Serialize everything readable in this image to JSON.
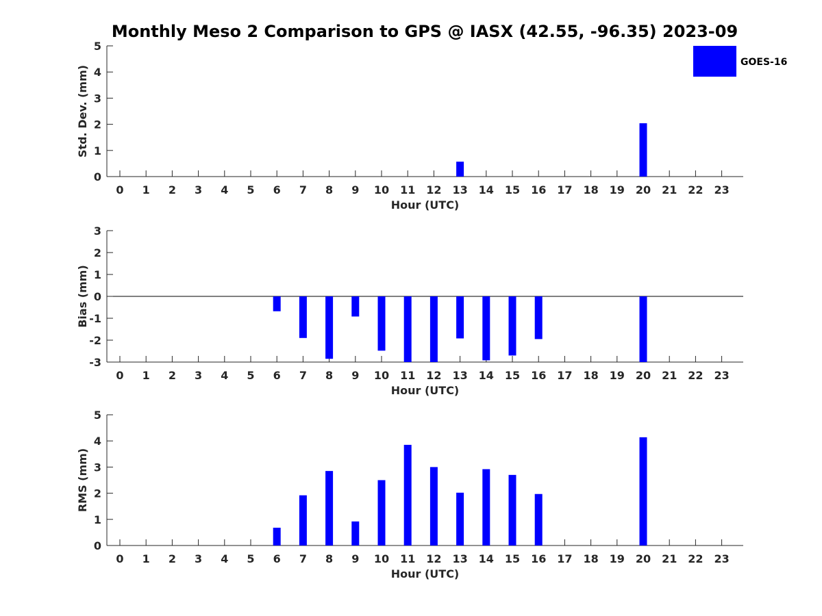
{
  "title": "Monthly Meso 2 Comparison to GPS @ IASX (42.55, -96.35) 2023-09",
  "legend": {
    "label": "GOES-16",
    "color": "#0000ff",
    "placement": "top-right"
  },
  "chart_data": [
    {
      "type": "bar",
      "xlabel": "Hour (UTC)",
      "ylabel": "Std. Dev. (mm)",
      "categories": [
        "0",
        "1",
        "2",
        "3",
        "4",
        "5",
        "6",
        "7",
        "8",
        "9",
        "10",
        "11",
        "12",
        "13",
        "14",
        "15",
        "16",
        "17",
        "18",
        "19",
        "20",
        "21",
        "22",
        "23"
      ],
      "series": [
        {
          "name": "GOES-16",
          "color": "#0000ff",
          "values": [
            null,
            null,
            null,
            null,
            null,
            null,
            null,
            null,
            null,
            null,
            null,
            null,
            null,
            0.57,
            null,
            null,
            null,
            null,
            null,
            null,
            2.04,
            null,
            null,
            null
          ]
        }
      ],
      "ylim": [
        0,
        5
      ],
      "yticks": [
        "0",
        "1",
        "2",
        "3",
        "4",
        "5"
      ],
      "zero_line": false,
      "grid": false
    },
    {
      "type": "bar",
      "xlabel": "Hour (UTC)",
      "ylabel": "Bias (mm)",
      "categories": [
        "0",
        "1",
        "2",
        "3",
        "4",
        "5",
        "6",
        "7",
        "8",
        "9",
        "10",
        "11",
        "12",
        "13",
        "14",
        "15",
        "16",
        "17",
        "18",
        "19",
        "20",
        "21",
        "22",
        "23"
      ],
      "series": [
        {
          "name": "GOES-16",
          "color": "#0000ff",
          "values": [
            null,
            null,
            null,
            null,
            null,
            null,
            -0.68,
            -1.9,
            -2.85,
            -0.92,
            -2.48,
            -3.0,
            -3.0,
            -1.92,
            -2.92,
            -2.7,
            -1.95,
            null,
            null,
            null,
            -3.0,
            null,
            null,
            null
          ]
        }
      ],
      "ylim": [
        -3,
        3
      ],
      "yticks": [
        "-3",
        "-2",
        "-1",
        "0",
        "1",
        "2",
        "3"
      ],
      "zero_line": true,
      "grid": false
    },
    {
      "type": "bar",
      "xlabel": "Hour (UTC)",
      "ylabel": "RMS (mm)",
      "categories": [
        "0",
        "1",
        "2",
        "3",
        "4",
        "5",
        "6",
        "7",
        "8",
        "9",
        "10",
        "11",
        "12",
        "13",
        "14",
        "15",
        "16",
        "17",
        "18",
        "19",
        "20",
        "21",
        "22",
        "23"
      ],
      "series": [
        {
          "name": "GOES-16",
          "color": "#0000ff",
          "values": [
            null,
            null,
            null,
            null,
            null,
            null,
            0.68,
            1.92,
            2.85,
            0.92,
            2.5,
            3.85,
            3.0,
            2.02,
            2.92,
            2.7,
            1.97,
            null,
            null,
            null,
            4.14,
            null,
            null,
            null
          ]
        }
      ],
      "ylim": [
        0,
        5
      ],
      "yticks": [
        "0",
        "1",
        "2",
        "3",
        "4",
        "5"
      ],
      "zero_line": false,
      "grid": false
    }
  ]
}
